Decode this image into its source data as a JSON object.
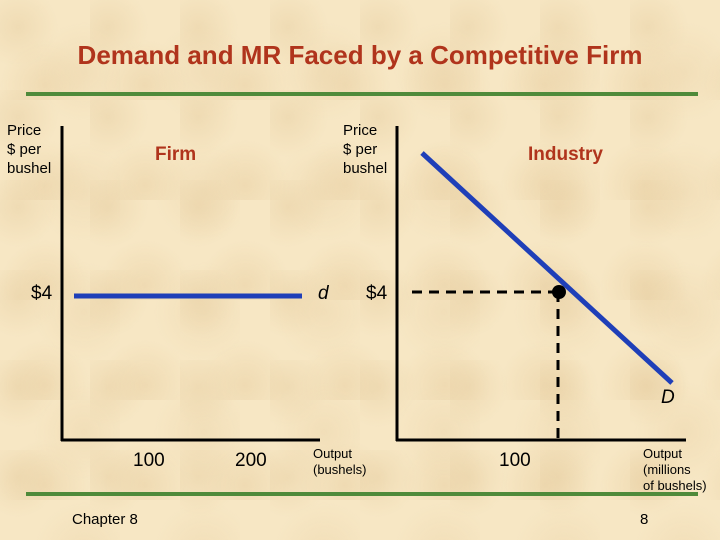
{
  "slide": {
    "title": "Demand and MR Faced by a Competitive Firm",
    "footer_left": "Chapter 8",
    "footer_right": "8"
  },
  "firm_panel": {
    "label": "Firm",
    "y_axis_label": [
      "Price",
      "$ per",
      "bushel"
    ],
    "price_label": "$4",
    "demand_label": "d",
    "x_ticks": [
      "100",
      "200"
    ],
    "x_axis_label": [
      "Output",
      "(bushels)"
    ]
  },
  "industry_panel": {
    "label": "Industry",
    "y_axis_label": [
      "Price",
      "$ per",
      "bushel"
    ],
    "price_label": "$4",
    "demand_label": "D",
    "x_tick": "100",
    "x_axis_label": [
      "Output",
      "(millions",
      "of bushels)"
    ]
  },
  "colors": {
    "title": "#b0341c",
    "panel_label": "#b0341c",
    "curve": "#1f3fb8",
    "rule": "#4f8a3a",
    "axis": "#000000"
  }
}
